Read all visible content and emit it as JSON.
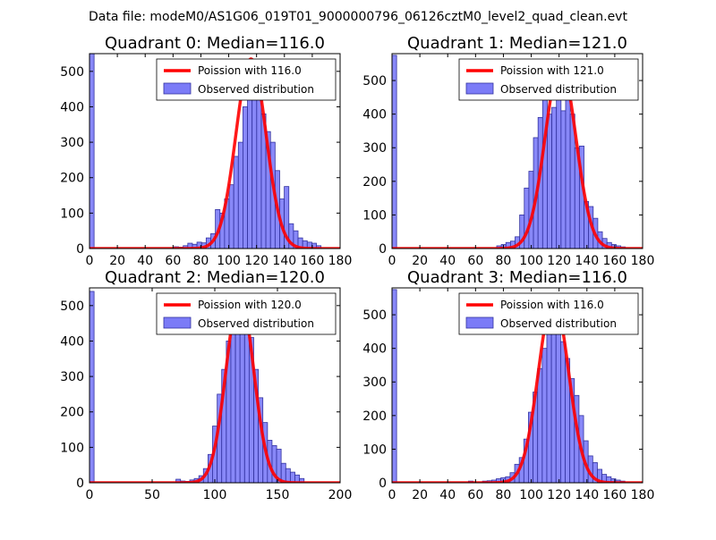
{
  "suptitle": "Data file: modeM0/AS1G06_019T01_9000000796_06126cztM0_level2_quad_clean.evt",
  "colors": {
    "hist_fill": "#7b7bf7",
    "hist_edge": "#3232a0",
    "poisson_line": "#ff0000"
  },
  "chart_data": [
    {
      "type": "bar",
      "title": "Quadrant 0: Median=116.0",
      "xlim": [
        0,
        180
      ],
      "ylim": [
        0,
        550
      ],
      "xticks": [
        "0",
        "20",
        "40",
        "60",
        "80",
        "100",
        "120",
        "140",
        "160",
        "180"
      ],
      "xtick_values": [
        0,
        20,
        40,
        60,
        80,
        100,
        120,
        140,
        160,
        180
      ],
      "yticks": [
        "0",
        "100",
        "200",
        "300",
        "400",
        "500"
      ],
      "ytick_values": [
        0,
        100,
        200,
        300,
        400,
        500
      ],
      "legend": [
        "Poission with 116.0",
        "Observed distribution"
      ],
      "legend_position": "top-right",
      "bin_width": 3.3,
      "bins": [
        {
          "x": 0,
          "y": 550
        },
        {
          "x": 60.7,
          "y": 5
        },
        {
          "x": 64.0,
          "y": 4
        },
        {
          "x": 67.3,
          "y": 8
        },
        {
          "x": 70.6,
          "y": 15
        },
        {
          "x": 73.9,
          "y": 12
        },
        {
          "x": 77.2,
          "y": 18
        },
        {
          "x": 80.5,
          "y": 16
        },
        {
          "x": 83.8,
          "y": 30
        },
        {
          "x": 87.1,
          "y": 42
        },
        {
          "x": 90.4,
          "y": 110
        },
        {
          "x": 93.7,
          "y": 100
        },
        {
          "x": 97.0,
          "y": 140
        },
        {
          "x": 100.3,
          "y": 180
        },
        {
          "x": 103.6,
          "y": 260
        },
        {
          "x": 106.9,
          "y": 300
        },
        {
          "x": 110.2,
          "y": 400
        },
        {
          "x": 113.5,
          "y": 500
        },
        {
          "x": 116.8,
          "y": 450
        },
        {
          "x": 120.1,
          "y": 440
        },
        {
          "x": 123.4,
          "y": 380
        },
        {
          "x": 126.7,
          "y": 330
        },
        {
          "x": 130.0,
          "y": 300
        },
        {
          "x": 133.3,
          "y": 220
        },
        {
          "x": 136.6,
          "y": 140
        },
        {
          "x": 139.9,
          "y": 175
        },
        {
          "x": 143.2,
          "y": 70
        },
        {
          "x": 146.5,
          "y": 50
        },
        {
          "x": 149.8,
          "y": 30
        },
        {
          "x": 153.1,
          "y": 22
        },
        {
          "x": 156.4,
          "y": 18
        },
        {
          "x": 159.7,
          "y": 15
        },
        {
          "x": 163.0,
          "y": 8
        }
      ],
      "poisson": {
        "mean": 116.0,
        "peak": 535,
        "x_from": 0,
        "x_to": 180
      }
    },
    {
      "type": "bar",
      "title": "Quadrant 1: Median=121.0",
      "xlim": [
        0,
        180
      ],
      "ylim": [
        0,
        580
      ],
      "xticks": [
        "0",
        "20",
        "40",
        "60",
        "80",
        "100",
        "120",
        "140",
        "160",
        "180"
      ],
      "xtick_values": [
        0,
        20,
        40,
        60,
        80,
        100,
        120,
        140,
        160,
        180
      ],
      "yticks": [
        "0",
        "100",
        "200",
        "300",
        "400",
        "500"
      ],
      "ytick_values": [
        0,
        100,
        200,
        300,
        400,
        500
      ],
      "legend": [
        "Poission with 121.0",
        "Observed distribution"
      ],
      "legend_position": "top-right",
      "bin_width": 3.3,
      "bins": [
        {
          "x": 0,
          "y": 575
        },
        {
          "x": 75.2,
          "y": 8
        },
        {
          "x": 78.5,
          "y": 12
        },
        {
          "x": 81.8,
          "y": 18
        },
        {
          "x": 85.1,
          "y": 22
        },
        {
          "x": 88.4,
          "y": 35
        },
        {
          "x": 91.7,
          "y": 100
        },
        {
          "x": 95.0,
          "y": 180
        },
        {
          "x": 98.3,
          "y": 230
        },
        {
          "x": 101.6,
          "y": 330
        },
        {
          "x": 104.9,
          "y": 390
        },
        {
          "x": 108.2,
          "y": 470
        },
        {
          "x": 111.5,
          "y": 400
        },
        {
          "x": 114.8,
          "y": 420
        },
        {
          "x": 118.1,
          "y": 520
        },
        {
          "x": 121.4,
          "y": 410
        },
        {
          "x": 124.7,
          "y": 480
        },
        {
          "x": 128.0,
          "y": 400
        },
        {
          "x": 131.3,
          "y": 300
        },
        {
          "x": 134.6,
          "y": 305
        },
        {
          "x": 137.9,
          "y": 140
        },
        {
          "x": 141.2,
          "y": 125
        },
        {
          "x": 144.5,
          "y": 90
        },
        {
          "x": 147.8,
          "y": 50
        },
        {
          "x": 151.1,
          "y": 30
        },
        {
          "x": 154.4,
          "y": 18
        },
        {
          "x": 157.7,
          "y": 12
        },
        {
          "x": 161.0,
          "y": 8
        },
        {
          "x": 164.3,
          "y": 5
        }
      ],
      "poisson": {
        "mean": 121.0,
        "peak": 550,
        "x_from": 0,
        "x_to": 180
      }
    },
    {
      "type": "bar",
      "title": "Quadrant 2: Median=120.0",
      "xlim": [
        0,
        200
      ],
      "ylim": [
        0,
        550
      ],
      "xticks": [
        "0",
        "50",
        "100",
        "150",
        "200"
      ],
      "xtick_values": [
        0,
        50,
        100,
        150,
        200
      ],
      "yticks": [
        "0",
        "100",
        "200",
        "300",
        "400",
        "500"
      ],
      "ytick_values": [
        0,
        100,
        200,
        300,
        400,
        500
      ],
      "legend": [
        "Poission with 120.0",
        "Observed distribution"
      ],
      "legend_position": "top-right",
      "bin_width": 3.65,
      "bins": [
        {
          "x": 0,
          "y": 540
        },
        {
          "x": 69.0,
          "y": 10
        },
        {
          "x": 72.7,
          "y": 5
        },
        {
          "x": 76.3,
          "y": 4
        },
        {
          "x": 80.0,
          "y": 8
        },
        {
          "x": 83.6,
          "y": 12
        },
        {
          "x": 87.3,
          "y": 20
        },
        {
          "x": 90.9,
          "y": 40
        },
        {
          "x": 94.6,
          "y": 80
        },
        {
          "x": 98.2,
          "y": 160
        },
        {
          "x": 101.9,
          "y": 250
        },
        {
          "x": 105.5,
          "y": 320
        },
        {
          "x": 109.2,
          "y": 400
        },
        {
          "x": 112.8,
          "y": 500
        },
        {
          "x": 116.5,
          "y": 510
        },
        {
          "x": 120.1,
          "y": 480
        },
        {
          "x": 123.8,
          "y": 470
        },
        {
          "x": 127.4,
          "y": 410
        },
        {
          "x": 131.1,
          "y": 320
        },
        {
          "x": 134.7,
          "y": 240
        },
        {
          "x": 138.4,
          "y": 170
        },
        {
          "x": 142.0,
          "y": 120
        },
        {
          "x": 145.7,
          "y": 105
        },
        {
          "x": 149.3,
          "y": 95
        },
        {
          "x": 153.0,
          "y": 55
        },
        {
          "x": 156.6,
          "y": 40
        },
        {
          "x": 160.3,
          "y": 30
        },
        {
          "x": 163.9,
          "y": 22
        },
        {
          "x": 167.6,
          "y": 12
        }
      ],
      "poisson": {
        "mean": 120.0,
        "peak": 530,
        "x_from": 0,
        "x_to": 200
      }
    },
    {
      "type": "bar",
      "title": "Quadrant 3: Median=116.0",
      "xlim": [
        0,
        180
      ],
      "ylim": [
        0,
        580
      ],
      "xticks": [
        "0",
        "20",
        "40",
        "60",
        "80",
        "100",
        "120",
        "140",
        "160",
        "180"
      ],
      "xtick_values": [
        0,
        20,
        40,
        60,
        80,
        100,
        120,
        140,
        160,
        180
      ],
      "yticks": [
        "0",
        "100",
        "200",
        "300",
        "400",
        "500"
      ],
      "ytick_values": [
        0,
        100,
        200,
        300,
        400,
        500
      ],
      "legend": [
        "Poission with 116.0",
        "Observed distribution"
      ],
      "legend_position": "top-right",
      "bin_width": 3.3,
      "bins": [
        {
          "x": 0,
          "y": 575
        },
        {
          "x": 54.9,
          "y": 5
        },
        {
          "x": 65.0,
          "y": 5
        },
        {
          "x": 68.3,
          "y": 6
        },
        {
          "x": 71.6,
          "y": 8
        },
        {
          "x": 74.9,
          "y": 12
        },
        {
          "x": 78.2,
          "y": 15
        },
        {
          "x": 81.5,
          "y": 18
        },
        {
          "x": 84.8,
          "y": 30
        },
        {
          "x": 88.1,
          "y": 55
        },
        {
          "x": 91.4,
          "y": 75
        },
        {
          "x": 94.7,
          "y": 130
        },
        {
          "x": 98.0,
          "y": 210
        },
        {
          "x": 101.3,
          "y": 270
        },
        {
          "x": 104.6,
          "y": 340
        },
        {
          "x": 107.9,
          "y": 400
        },
        {
          "x": 111.2,
          "y": 470
        },
        {
          "x": 114.5,
          "y": 520
        },
        {
          "x": 117.8,
          "y": 480
        },
        {
          "x": 121.1,
          "y": 420
        },
        {
          "x": 124.4,
          "y": 370
        },
        {
          "x": 127.7,
          "y": 310
        },
        {
          "x": 131.0,
          "y": 260
        },
        {
          "x": 134.3,
          "y": 200
        },
        {
          "x": 137.6,
          "y": 125
        },
        {
          "x": 140.9,
          "y": 80
        },
        {
          "x": 144.2,
          "y": 60
        },
        {
          "x": 147.5,
          "y": 40
        },
        {
          "x": 150.8,
          "y": 25
        },
        {
          "x": 154.1,
          "y": 18
        },
        {
          "x": 157.4,
          "y": 12
        },
        {
          "x": 160.7,
          "y": 8
        },
        {
          "x": 164.0,
          "y": 5
        }
      ],
      "poisson": {
        "mean": 116.0,
        "peak": 550,
        "x_from": 0,
        "x_to": 180
      }
    }
  ]
}
